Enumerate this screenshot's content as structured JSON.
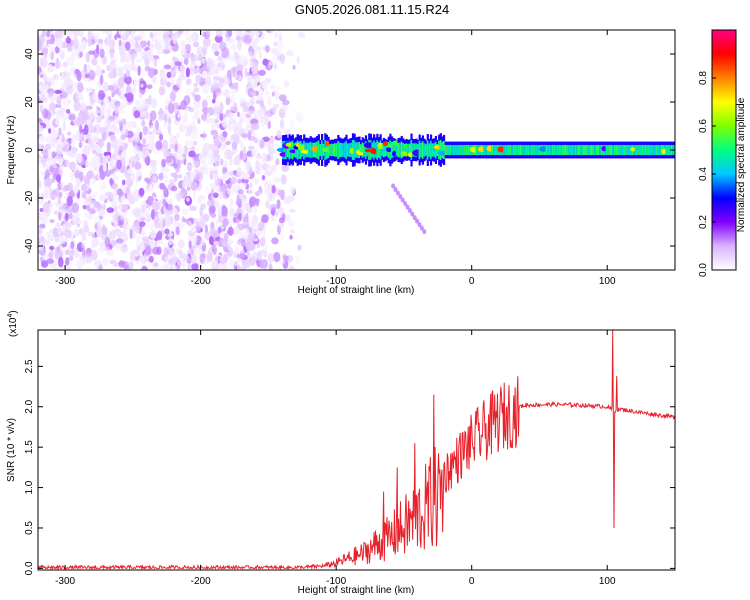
{
  "title": "GN05.2026.081.11.15.R24",
  "chart_data": [
    {
      "type": "heatmap",
      "xlabel": "Height of straight line (km)",
      "ylabel": "Frequency (Hz)",
      "xlim": [
        -320,
        150
      ],
      "ylim": [
        -50,
        50
      ],
      "x_ticks": [
        -300,
        -200,
        -100,
        0,
        100
      ],
      "x_tick_labels": [
        "-300",
        "-200",
        "-100",
        "0",
        "100"
      ],
      "y_ticks": [
        -40,
        -20,
        0,
        20,
        40
      ],
      "y_tick_labels": [
        "-40",
        "-20",
        "0",
        "20",
        "40"
      ],
      "colorbar": {
        "label": "Normalized spectral amplitude",
        "range": [
          0,
          1
        ],
        "ticks": [
          0.0,
          0.2,
          0.4,
          0.6,
          0.8
        ],
        "tick_labels": [
          "0.0",
          "0.2",
          "0.4",
          "0.6",
          "0.8"
        ],
        "colors": [
          "#ffffff",
          "#d9b3ff",
          "#8000ff",
          "#0000ff",
          "#00c8ff",
          "#00ff80",
          "#80ff00",
          "#ffff00",
          "#ff8000",
          "#ff0000",
          "#ff0080"
        ]
      },
      "regions": [
        {
          "desc": "broadband scattered noise",
          "x": [
            -320,
            -125
          ],
          "y": [
            -50,
            50
          ],
          "amplitude": [
            0.02,
            0.15
          ]
        },
        {
          "desc": "signal band near 0 Hz",
          "x": [
            -140,
            150
          ],
          "y": [
            -4,
            4
          ],
          "amplitude": [
            0.2,
            0.9
          ]
        },
        {
          "desc": "descending streak",
          "x": [
            -58,
            -35
          ],
          "y": [
            -34,
            -15
          ],
          "amplitude": [
            0.1,
            0.15
          ]
        }
      ]
    },
    {
      "type": "line",
      "xlabel": "Height of straight line (km)",
      "ylabel": "SNR (10 * v/v)",
      "scale_label": "(x10",
      "scale_exp": "4",
      "scale_close": ")",
      "xlim": [
        -320,
        150
      ],
      "ylim": [
        -0.02,
        2.95
      ],
      "x_ticks": [
        -300,
        -200,
        -100,
        0,
        100
      ],
      "x_tick_labels": [
        "-300",
        "-200",
        "-100",
        "0",
        "100"
      ],
      "y_ticks": [
        0.0,
        0.5,
        1.0,
        1.5,
        2.0,
        2.5
      ],
      "y_tick_labels": [
        "0.0",
        "0.5",
        "1.0",
        "1.5",
        "2.0",
        "2.5"
      ],
      "series": [
        {
          "color": "#e8222b",
          "envelope": {
            "x": [
              -320,
              -125,
              -110,
              -100,
              -90,
              -80,
              -70,
              -60,
              -50,
              -40,
              -30,
              -25,
              -20,
              -10,
              0,
              10,
              20,
              30,
              40,
              60,
              80,
              100,
              105,
              110,
              120,
              150
            ],
            "y": [
              0.01,
              0.01,
              0.03,
              0.08,
              0.15,
              0.22,
              0.35,
              0.45,
              0.6,
              0.75,
              0.95,
              1.05,
              1.2,
              1.4,
              1.6,
              1.75,
              1.9,
              1.98,
              2.02,
              2.03,
              2.02,
              2.0,
              1.95,
              1.97,
              1.94,
              1.87
            ]
          },
          "spikes": [
            {
              "x": -28,
              "y": 2.15
            },
            {
              "x": -42,
              "y": 1.55
            },
            {
              "x": -55,
              "y": 1.25
            },
            {
              "x": -65,
              "y": 0.95
            },
            {
              "x": 104,
              "y": 2.95
            },
            {
              "x": 105,
              "y": 0.5
            },
            {
              "x": 107,
              "y": 2.38
            }
          ]
        }
      ]
    }
  ]
}
